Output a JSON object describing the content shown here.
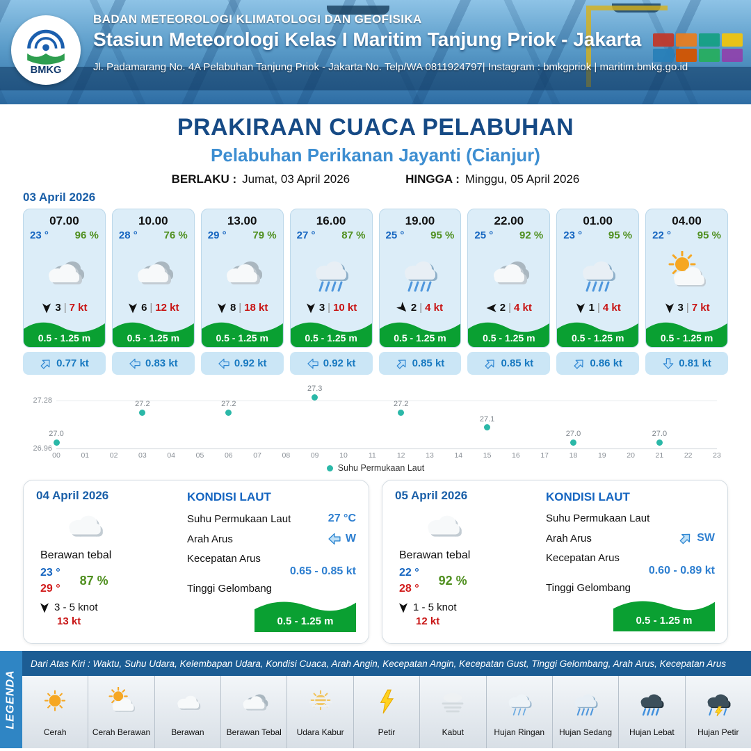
{
  "colors": {
    "accent_blue": "#1a5fa8",
    "temp_blue": "#1565c0",
    "humidity_green": "#4f8f1f",
    "gust_red": "#c81414",
    "wave_green": "#0aa032",
    "current_blue": "#1879c0",
    "chart_teal": "#2bb8a8",
    "temp_max_red": "#d11a1a",
    "legend_blue": "#2f85c4",
    "note_blue": "#1c5d94"
  },
  "header": {
    "logo_text": "BMKG",
    "agency": "BADAN METEOROLOGI KLIMATOLOGI DAN GEOFISIKA",
    "station": "Stasiun Meteorologi Kelas I Maritim Tanjung Priok - Jakarta",
    "address": "Jl. Padamarang No. 4A Pelabuhan Tanjung Priok - Jakarta No. Telp/WA 0811924797| Instagram : bmkgpriok | maritim.bmkg.go.id"
  },
  "title": {
    "main": "PRAKIRAAN CUACA PELABUHAN",
    "sub": "Pelabuhan Perikanan Jayanti (Cianjur)",
    "berlaku_label": "BERLAKU :",
    "berlaku_value": "Jumat, 03 April 2026",
    "hingga_label": "HINGGA :",
    "hingga_value": "Minggu, 05 April 2026"
  },
  "forecast": {
    "date": "03 April 2026",
    "cards": [
      {
        "time": "07.00",
        "temp": "23 °",
        "humidity": "96 %",
        "icon": "berawan-tebal-icon",
        "wind": "3",
        "gust": "7 kt",
        "wind_deg": 180,
        "wave": "0.5 - 1.25 m",
        "current": "0.77 kt",
        "current_deg": 45
      },
      {
        "time": "10.00",
        "temp": "28 °",
        "humidity": "76 %",
        "icon": "berawan-tebal-icon",
        "wind": "6",
        "gust": "12 kt",
        "wind_deg": 180,
        "wave": "0.5 - 1.25 m",
        "current": "0.83 kt",
        "current_deg": 270
      },
      {
        "time": "13.00",
        "temp": "29 °",
        "humidity": "79 %",
        "icon": "berawan-tebal-icon",
        "wind": "8",
        "gust": "18 kt",
        "wind_deg": 180,
        "wave": "0.5 - 1.25 m",
        "current": "0.92 kt",
        "current_deg": 270
      },
      {
        "time": "16.00",
        "temp": "27 °",
        "humidity": "87 %",
        "icon": "hujan-sedang-icon",
        "wind": "3",
        "gust": "10 kt",
        "wind_deg": 180,
        "wave": "0.5 - 1.25 m",
        "current": "0.92 kt",
        "current_deg": 270
      },
      {
        "time": "19.00",
        "temp": "25 °",
        "humidity": "95 %",
        "icon": "hujan-sedang-icon",
        "wind": "2",
        "gust": "4 kt",
        "wind_deg": 135,
        "wave": "0.5 - 1.25 m",
        "current": "0.85 kt",
        "current_deg": 45
      },
      {
        "time": "22.00",
        "temp": "25 °",
        "humidity": "92 %",
        "icon": "berawan-tebal-icon",
        "wind": "2",
        "gust": "4 kt",
        "wind_deg": 270,
        "wave": "0.5 - 1.25 m",
        "current": "0.85 kt",
        "current_deg": 45
      },
      {
        "time": "01.00",
        "temp": "23 °",
        "humidity": "95 %",
        "icon": "hujan-sedang-icon",
        "wind": "1",
        "gust": "4 kt",
        "wind_deg": 180,
        "wave": "0.5 - 1.25 m",
        "current": "0.86 kt",
        "current_deg": 45
      },
      {
        "time": "04.00",
        "temp": "22 °",
        "humidity": "95 %",
        "icon": "cerah-berawan-icon",
        "wind": "3",
        "gust": "7 kt",
        "wind_deg": 180,
        "wave": "0.5 - 1.25 m",
        "current": "0.81 kt",
        "current_deg": 180
      }
    ]
  },
  "chart_data": {
    "type": "scatter",
    "series_name": "Suhu Permukaan Laut",
    "x": [
      0,
      3,
      6,
      9,
      12,
      15,
      18,
      21
    ],
    "values": [
      27.0,
      27.2,
      27.2,
      27.3,
      27.2,
      27.1,
      27.0,
      27.0
    ],
    "point_labels": [
      "27.0",
      "27.2",
      "27.2",
      "27.3",
      "27.2",
      "27.1",
      "27.0",
      "27.0"
    ],
    "x_ticks": [
      "00",
      "01",
      "02",
      "03",
      "04",
      "05",
      "06",
      "07",
      "08",
      "09",
      "10",
      "11",
      "12",
      "13",
      "14",
      "15",
      "16",
      "17",
      "18",
      "19",
      "20",
      "21",
      "22",
      "23"
    ],
    "y_ticks": [
      "27.28",
      "26.96"
    ],
    "ylim": [
      26.96,
      27.32
    ],
    "legend_label": "Suhu Permukaan Laut",
    "legend_position": "bottom-center",
    "grid": false
  },
  "days": [
    {
      "date": "04 April 2026",
      "icon": "berawan-icon",
      "condition": "Berawan tebal",
      "temp_min": "23 °",
      "temp_max": "29 °",
      "humidity": "87 %",
      "wind": "3  - 5 knot",
      "wind_deg": 180,
      "gust": "13 kt",
      "sea": {
        "title": "KONDISI LAUT",
        "sst_label": "Suhu Permukaan Laut",
        "sst": "27 °C",
        "dir_label": "Arah Arus",
        "dir": "W",
        "dir_deg": 270,
        "speed_label": "Kecepatan Arus",
        "speed": "0.65  - 0.85 kt",
        "wave_label": "Tinggi Gelombang",
        "wave": "0.5 - 1.25 m"
      }
    },
    {
      "date": "05 April 2026",
      "icon": "berawan-icon",
      "condition": "Berawan tebal",
      "temp_min": "22 °",
      "temp_max": "28 °",
      "humidity": "92 %",
      "wind": "1  - 5 knot",
      "wind_deg": 180,
      "gust": "12 kt",
      "sea": {
        "title": "KONDISI LAUT",
        "sst_label": "Suhu Permukaan Laut",
        "sst": "",
        "dir_label": "Arah Arus",
        "dir": "SW",
        "dir_deg": 45,
        "speed_label": "Kecepatan Arus",
        "speed": "0.60 - 0.89 kt",
        "wave_label": "Tinggi Gelombang",
        "wave": "0.5 - 1.25 m"
      }
    }
  ],
  "legend": {
    "side_title": "LEGENDA",
    "note": "Dari Atas Kiri : Waktu, Suhu Udara, Kelembapan Udara, Kondisi Cuaca, Arah Angin, Kecepatan Angin, Kecepatan Gust, Tinggi Gelombang, Arah Arus, Kecepatan Arus",
    "items": [
      {
        "label": "Cerah",
        "icon": "cerah-icon"
      },
      {
        "label": "Cerah Berawan",
        "icon": "cerah-berawan-icon"
      },
      {
        "label": "Berawan",
        "icon": "berawan-icon"
      },
      {
        "label": "Berawan Tebal",
        "icon": "berawan-tebal-icon"
      },
      {
        "label": "Udara Kabur",
        "icon": "udara-kabur-icon"
      },
      {
        "label": "Petir",
        "icon": "petir-icon"
      },
      {
        "label": "Kabut",
        "icon": "kabut-icon"
      },
      {
        "label": "Hujan Ringan",
        "icon": "hujan-ringan-icon"
      },
      {
        "label": "Hujan Sedang",
        "icon": "hujan-sedang-icon"
      },
      {
        "label": "Hujan Lebat",
        "icon": "hujan-lebat-icon"
      },
      {
        "label": "Hujan Petir",
        "icon": "hujan-petir-icon"
      }
    ]
  }
}
